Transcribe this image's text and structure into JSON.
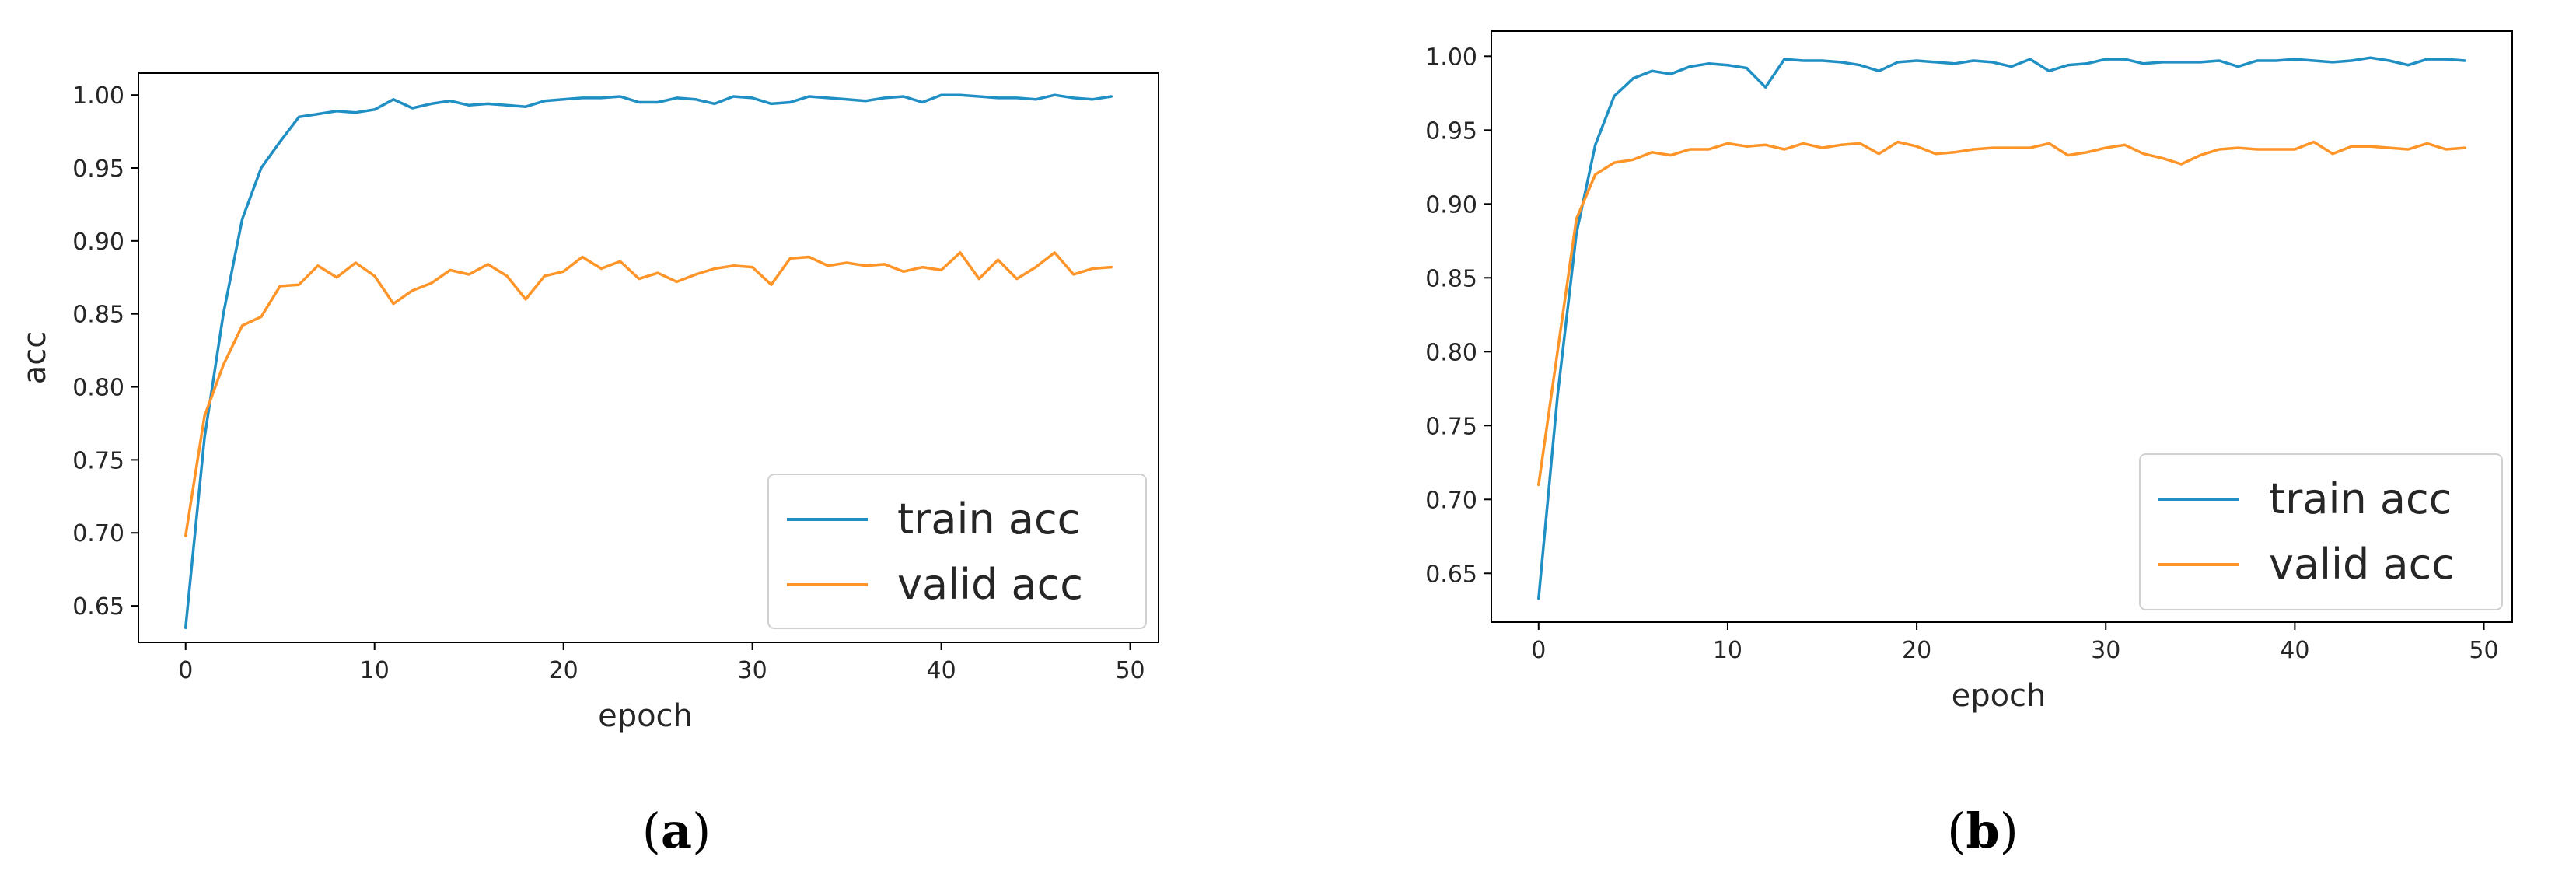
{
  "chart_data": [
    {
      "type": "line",
      "caption": "a",
      "caption_open": "(",
      "caption_close": ")",
      "xlabel": "epoch",
      "ylabel": "acc",
      "xlim": [
        -2.5,
        51.5
      ],
      "ylim": [
        0.625,
        1.015
      ],
      "xticks": [
        0,
        10,
        20,
        30,
        40,
        50
      ],
      "yticks": [
        0.65,
        0.7,
        0.75,
        0.8,
        0.85,
        0.9,
        0.95,
        1.0
      ],
      "ytick_labels": [
        "0.65",
        "0.70",
        "0.75",
        "0.80",
        "0.85",
        "0.90",
        "0.95",
        "1.00"
      ],
      "grid": false,
      "legend": "lower-right",
      "x": [
        0,
        1,
        2,
        3,
        4,
        5,
        6,
        7,
        8,
        9,
        10,
        11,
        12,
        13,
        14,
        15,
        16,
        17,
        18,
        19,
        20,
        21,
        22,
        23,
        24,
        25,
        26,
        27,
        28,
        29,
        30,
        31,
        32,
        33,
        34,
        35,
        36,
        37,
        38,
        39,
        40,
        41,
        42,
        43,
        44,
        45,
        46,
        47,
        48,
        49
      ],
      "series": [
        {
          "name": "train acc",
          "color": "#1f8fc4",
          "values": [
            0.635,
            0.765,
            0.85,
            0.915,
            0.95,
            0.968,
            0.985,
            0.987,
            0.989,
            0.988,
            0.99,
            0.997,
            0.991,
            0.994,
            0.996,
            0.993,
            0.994,
            0.993,
            0.992,
            0.996,
            0.997,
            0.998,
            0.998,
            0.999,
            0.995,
            0.995,
            0.998,
            0.997,
            0.994,
            0.999,
            0.998,
            0.994,
            0.995,
            0.999,
            0.998,
            0.997,
            0.996,
            0.998,
            0.999,
            0.995,
            1.0,
            1.0,
            0.999,
            0.998,
            0.998,
            0.997,
            1.0,
            0.998,
            0.997,
            0.999
          ]
        },
        {
          "name": "valid acc",
          "color": "#ff9529",
          "values": [
            0.698,
            0.78,
            0.815,
            0.842,
            0.848,
            0.869,
            0.87,
            0.883,
            0.875,
            0.885,
            0.876,
            0.857,
            0.866,
            0.871,
            0.88,
            0.877,
            0.884,
            0.876,
            0.86,
            0.876,
            0.879,
            0.889,
            0.881,
            0.886,
            0.874,
            0.878,
            0.872,
            0.877,
            0.881,
            0.883,
            0.882,
            0.87,
            0.888,
            0.889,
            0.883,
            0.885,
            0.883,
            0.884,
            0.879,
            0.882,
            0.88,
            0.892,
            0.874,
            0.887,
            0.874,
            0.882,
            0.892,
            0.877,
            0.881,
            0.882
          ]
        }
      ]
    },
    {
      "type": "line",
      "caption": "b",
      "caption_open": "(",
      "caption_close": ")",
      "xlabel": "epoch",
      "ylabel": "",
      "xlim": [
        -2.5,
        51.5
      ],
      "ylim": [
        0.617,
        1.017
      ],
      "xticks": [
        0,
        10,
        20,
        30,
        40,
        50
      ],
      "yticks": [
        0.65,
        0.7,
        0.75,
        0.8,
        0.85,
        0.9,
        0.95,
        1.0
      ],
      "ytick_labels": [
        "0.65",
        "0.70",
        "0.75",
        "0.80",
        "0.85",
        "0.90",
        "0.95",
        "1.00"
      ],
      "grid": false,
      "legend": "lower-right",
      "x": [
        0,
        1,
        2,
        3,
        4,
        5,
        6,
        7,
        8,
        9,
        10,
        11,
        12,
        13,
        14,
        15,
        16,
        17,
        18,
        19,
        20,
        21,
        22,
        23,
        24,
        25,
        26,
        27,
        28,
        29,
        30,
        31,
        32,
        33,
        34,
        35,
        36,
        37,
        38,
        39,
        40,
        41,
        42,
        43,
        44,
        45,
        46,
        47,
        48,
        49
      ],
      "series": [
        {
          "name": "train acc",
          "color": "#1f8fc4",
          "values": [
            0.633,
            0.77,
            0.88,
            0.94,
            0.973,
            0.985,
            0.99,
            0.988,
            0.993,
            0.995,
            0.994,
            0.992,
            0.979,
            0.998,
            0.997,
            0.997,
            0.996,
            0.994,
            0.99,
            0.996,
            0.997,
            0.996,
            0.995,
            0.997,
            0.996,
            0.993,
            0.998,
            0.99,
            0.994,
            0.995,
            0.998,
            0.998,
            0.995,
            0.996,
            0.996,
            0.996,
            0.997,
            0.993,
            0.997,
            0.997,
            0.998,
            0.997,
            0.996,
            0.997,
            0.999,
            0.997,
            0.994,
            0.998,
            0.998,
            0.997
          ]
        },
        {
          "name": "valid acc",
          "color": "#ff9529",
          "values": [
            0.71,
            0.8,
            0.89,
            0.92,
            0.928,
            0.93,
            0.935,
            0.933,
            0.937,
            0.937,
            0.941,
            0.939,
            0.94,
            0.937,
            0.941,
            0.938,
            0.94,
            0.941,
            0.934,
            0.942,
            0.939,
            0.934,
            0.935,
            0.937,
            0.938,
            0.938,
            0.938,
            0.941,
            0.933,
            0.935,
            0.938,
            0.94,
            0.934,
            0.931,
            0.927,
            0.933,
            0.937,
            0.938,
            0.937,
            0.937,
            0.937,
            0.942,
            0.934,
            0.939,
            0.939,
            0.938,
            0.937,
            0.941,
            0.937,
            0.938
          ]
        }
      ]
    }
  ]
}
